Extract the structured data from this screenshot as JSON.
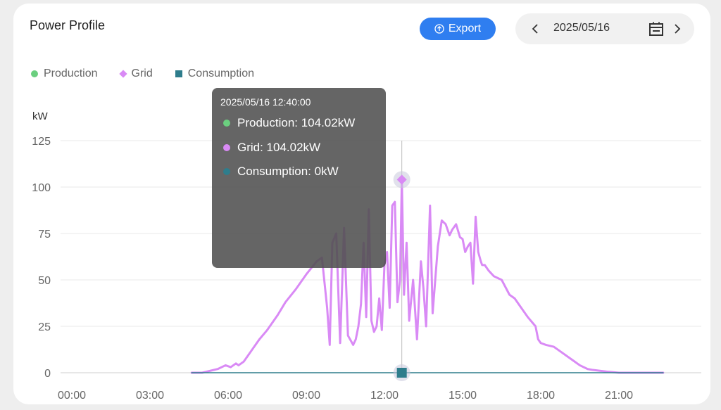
{
  "card": {
    "title": "Power Profile",
    "export_label": "Export",
    "date": "2025/05/16"
  },
  "colors": {
    "production": "#6bcf7f",
    "grid": "#d98af5",
    "consumption": "#2e7d8c",
    "accent": "#2f7ef0"
  },
  "icons": {
    "export": "export-icon",
    "prev": "chevron-left-icon",
    "next": "chevron-right-icon",
    "calendar": "calendar-icon"
  },
  "tooltip": {
    "time": "2025/05/16 12:40:00",
    "production": "Production: 104.02kW",
    "grid": "Grid: 104.02kW",
    "consumption": "Consumption: 0kW"
  },
  "chart_data": {
    "type": "line",
    "ylabel": "kW",
    "ylim": [
      0,
      125
    ],
    "yticks": [
      "0",
      "25",
      "50",
      "75",
      "100",
      "125"
    ],
    "xticks": [
      "00:00",
      "03:00",
      "06:00",
      "09:00",
      "12:00",
      "15:00",
      "18:00",
      "21:00"
    ],
    "xlim_hours": [
      0,
      24
    ],
    "grid": true,
    "legend_position": "top-left",
    "crosshair_hour": 12.667,
    "series": [
      {
        "name": "Production",
        "color": "#6bcf7f",
        "marker": "circle",
        "x": [],
        "values": []
      },
      {
        "name": "Grid",
        "color": "#d98af5",
        "marker": "diamond",
        "x": [
          4.6,
          5.0,
          5.3,
          5.6,
          5.9,
          6.1,
          6.3,
          6.4,
          6.6,
          6.8,
          6.9,
          7.1,
          7.2,
          7.5,
          7.9,
          8.2,
          8.6,
          9.0,
          9.4,
          9.6,
          9.8,
          9.9,
          10.0,
          10.15,
          10.3,
          10.45,
          10.6,
          10.8,
          10.9,
          11.0,
          11.1,
          11.2,
          11.3,
          11.4,
          11.5,
          11.6,
          11.7,
          11.8,
          11.9,
          12.0,
          12.1,
          12.2,
          12.3,
          12.4,
          12.5,
          12.6,
          12.667,
          12.75,
          12.85,
          12.95,
          13.1,
          13.25,
          13.4,
          13.5,
          13.6,
          13.75,
          13.85,
          13.95,
          14.05,
          14.2,
          14.35,
          14.5,
          14.6,
          14.75,
          14.9,
          15.0,
          15.1,
          15.2,
          15.3,
          15.4,
          15.5,
          15.6,
          15.7,
          15.75,
          15.85,
          16.0,
          16.2,
          16.5,
          16.8,
          17.0,
          17.2,
          17.5,
          17.8,
          17.9,
          18.0,
          18.2,
          18.5,
          18.8,
          19.2,
          19.5,
          19.8,
          20.0,
          20.3,
          20.6,
          21.0,
          21.5,
          22.0,
          22.5,
          22.7
        ],
        "values": [
          0,
          0,
          1,
          2,
          4,
          3,
          5,
          4,
          6,
          10,
          12,
          16,
          18,
          23,
          31,
          38,
          45,
          53,
          60,
          62,
          35,
          15,
          70,
          75,
          16,
          78,
          20,
          15,
          18,
          25,
          37,
          70,
          30,
          88,
          28,
          22,
          25,
          40,
          23,
          58,
          65,
          35,
          90,
          92,
          38,
          50,
          104.02,
          42,
          70,
          28,
          50,
          18,
          60,
          45,
          25,
          90,
          32,
          50,
          68,
          82,
          80,
          74,
          77,
          80,
          73,
          72,
          65,
          68,
          70,
          48,
          84,
          65,
          60,
          58,
          58,
          55,
          52,
          50,
          42,
          40,
          36,
          30,
          25,
          18,
          16,
          15,
          14,
          11,
          7,
          4,
          2,
          1.5,
          1,
          0.5,
          0,
          0,
          0,
          0,
          0
        ]
      },
      {
        "name": "Consumption",
        "color": "#2e7d8c",
        "marker": "square",
        "x": [
          4.6,
          22.7
        ],
        "values": [
          0,
          0
        ]
      }
    ]
  }
}
